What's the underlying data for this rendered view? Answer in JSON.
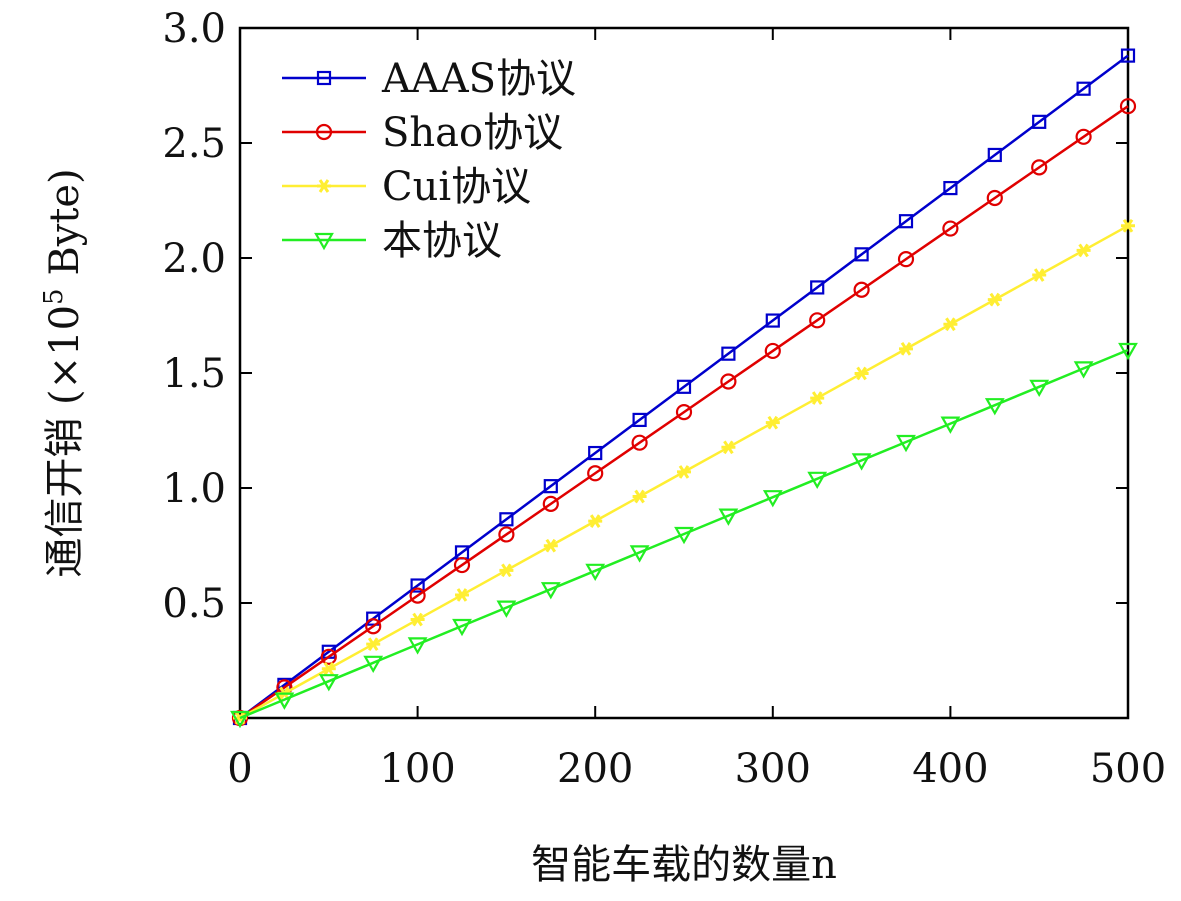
{
  "chart_data": {
    "type": "line",
    "title": "",
    "xlabel": "智能车载的数量n",
    "ylabel_prefix": "通信开销 (×10",
    "ylabel_exp": "5",
    "ylabel_suffix": " Byte)",
    "xlim": [
      0,
      500
    ],
    "ylim": [
      0,
      3.0
    ],
    "x_ticks": [
      "0",
      "100",
      "200",
      "300",
      "400",
      "500"
    ],
    "y_ticks": [
      "0.5",
      "1.0",
      "1.5",
      "2.0",
      "2.5",
      "3.0"
    ],
    "legend_position": "top-left",
    "grid": false,
    "x": [
      0,
      25,
      50,
      75,
      100,
      125,
      150,
      175,
      200,
      225,
      250,
      275,
      300,
      325,
      350,
      375,
      400,
      425,
      450,
      475,
      500
    ],
    "series": [
      {
        "name": "AAAS协议",
        "color": "#0000cc",
        "marker": "square",
        "values": [
          0.0,
          0.144,
          0.288,
          0.432,
          0.576,
          0.72,
          0.864,
          1.008,
          1.152,
          1.296,
          1.44,
          1.584,
          1.728,
          1.872,
          2.016,
          2.16,
          2.304,
          2.448,
          2.592,
          2.736,
          2.88
        ]
      },
      {
        "name": "Shao协议",
        "color": "#e00000",
        "marker": "circle",
        "values": [
          0.0,
          0.133,
          0.266,
          0.399,
          0.532,
          0.665,
          0.798,
          0.931,
          1.064,
          1.197,
          1.33,
          1.463,
          1.596,
          1.729,
          1.862,
          1.995,
          2.128,
          2.261,
          2.394,
          2.527,
          2.66
        ]
      },
      {
        "name": "Cui协议",
        "color": "#ffee33",
        "marker": "star",
        "values": [
          0.0,
          0.107,
          0.214,
          0.321,
          0.428,
          0.535,
          0.642,
          0.749,
          0.856,
          0.963,
          1.07,
          1.177,
          1.284,
          1.391,
          1.498,
          1.605,
          1.712,
          1.819,
          1.926,
          2.033,
          2.14
        ]
      },
      {
        "name": "本协议",
        "color": "#22ee22",
        "marker": "triangle-down",
        "values": [
          0.0,
          0.08,
          0.16,
          0.24,
          0.32,
          0.4,
          0.48,
          0.56,
          0.64,
          0.72,
          0.8,
          0.88,
          0.96,
          1.04,
          1.12,
          1.2,
          1.28,
          1.36,
          1.44,
          1.52,
          1.6
        ]
      }
    ]
  }
}
